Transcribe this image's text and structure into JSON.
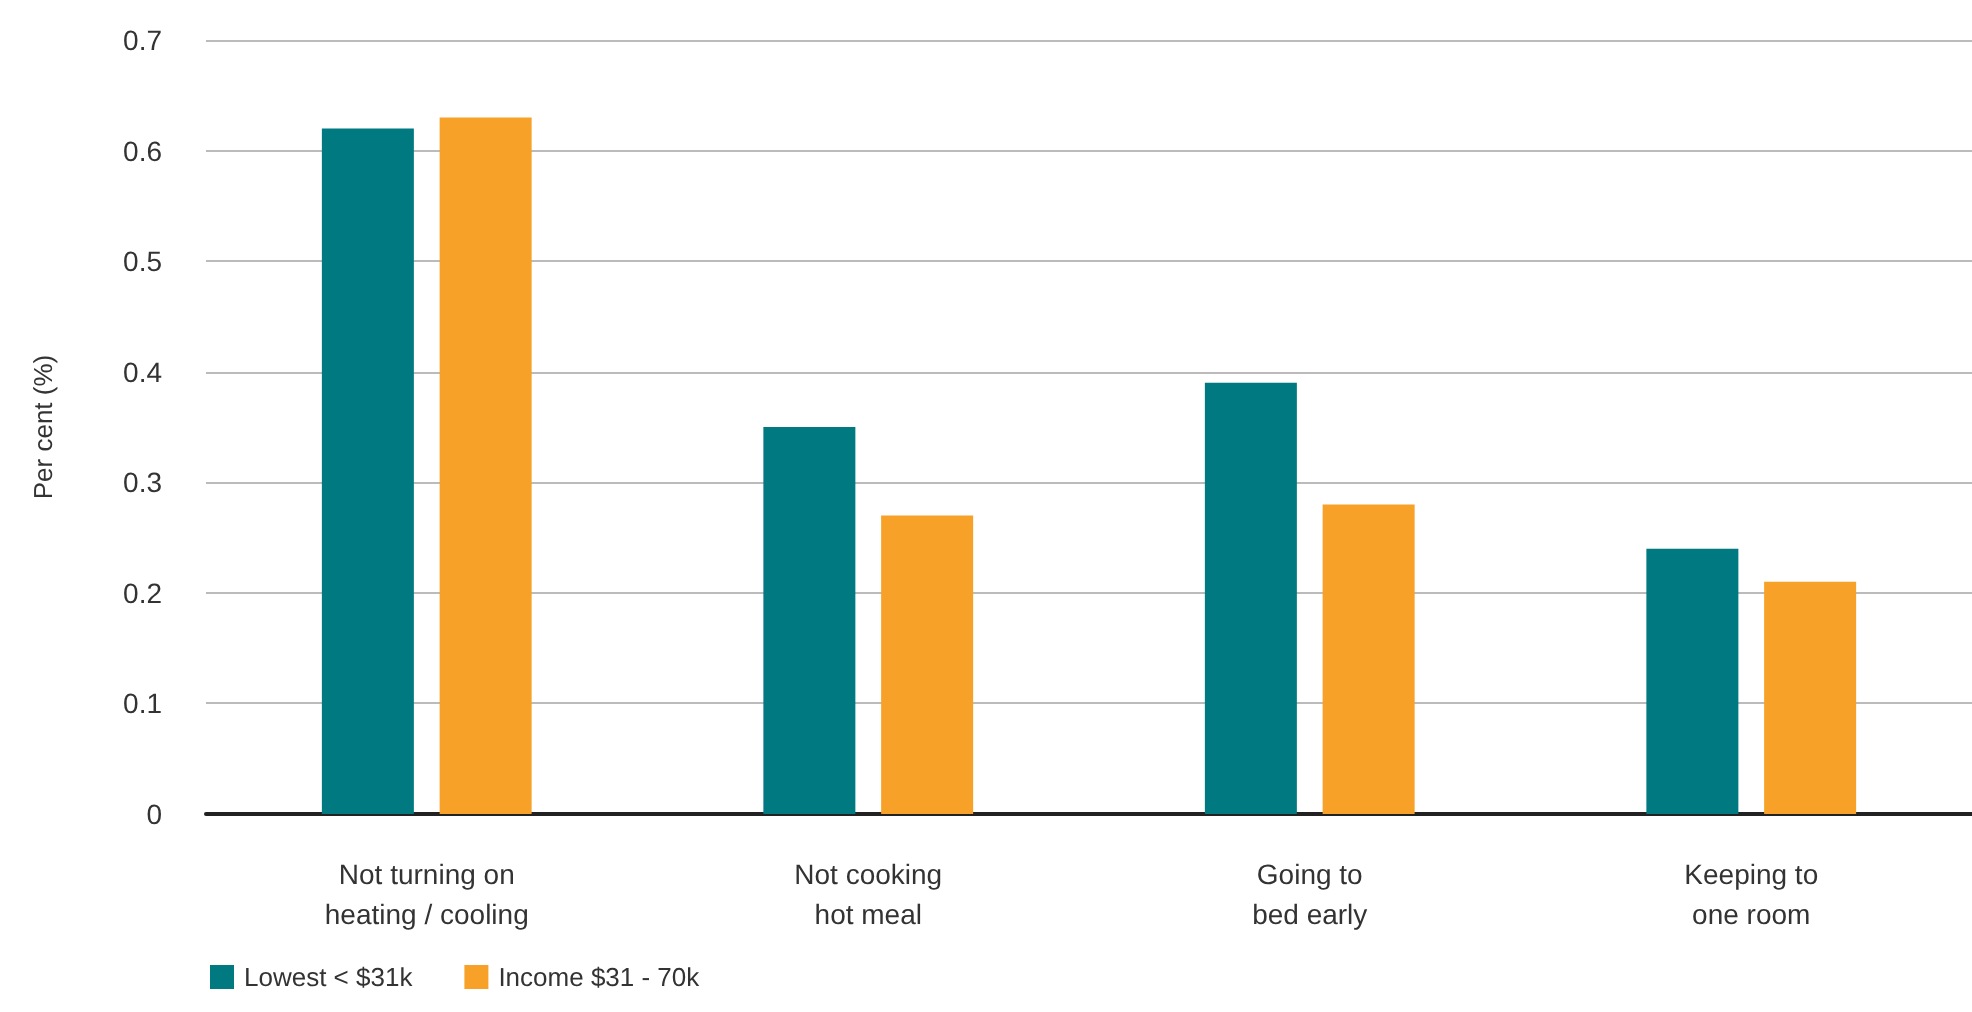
{
  "chart_data": {
    "type": "bar",
    "ylabel": "Per cent (%)",
    "categories": [
      "Not turning on\nheating / cooling",
      "Not cooking\nhot meal",
      "Going to\nbed early",
      "Keeping to\none room"
    ],
    "series": [
      {
        "name": "Lowest < $31k",
        "color": "#007a80",
        "values": [
          0.62,
          0.35,
          0.39,
          0.24
        ]
      },
      {
        "name": "Income $31 - 70k",
        "color": "#f7a128",
        "values": [
          0.63,
          0.27,
          0.28,
          0.21
        ]
      }
    ],
    "ylim": [
      0,
      0.7
    ],
    "yticks": [
      0,
      0.1,
      0.2,
      0.3,
      0.4,
      0.5,
      0.6,
      0.7
    ],
    "grid": "y",
    "legend": "bottom left"
  }
}
